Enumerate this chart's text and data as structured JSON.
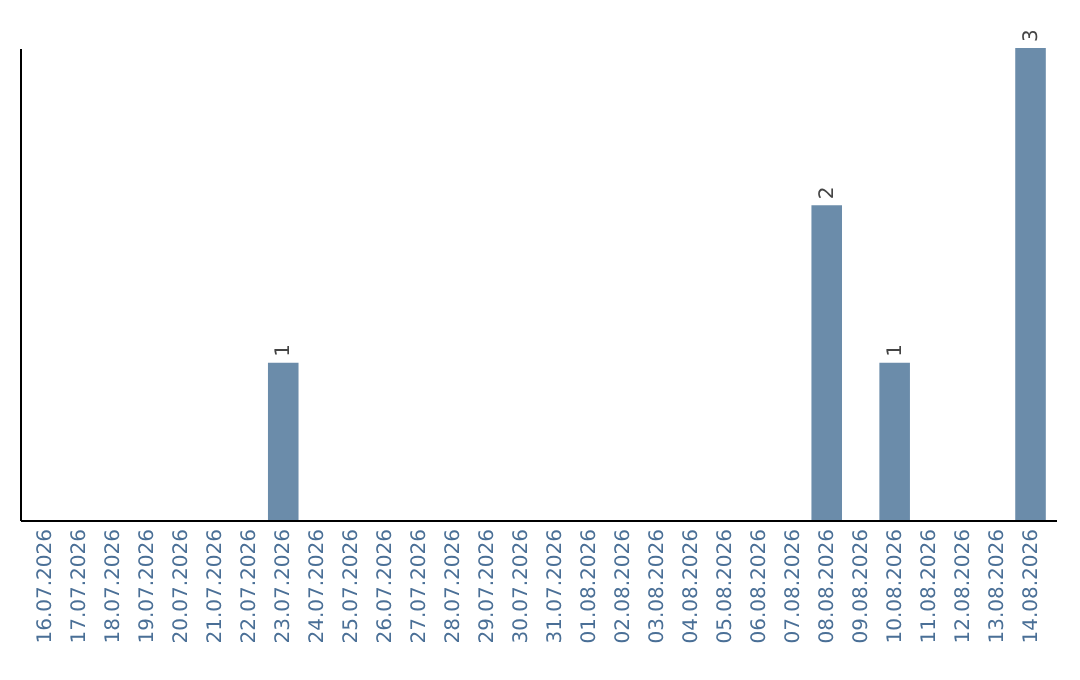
{
  "chart_data": {
    "type": "bar",
    "categories": [
      "16.07.2026",
      "17.07.2026",
      "18.07.2026",
      "19.07.2026",
      "20.07.2026",
      "21.07.2026",
      "22.07.2026",
      "23.07.2026",
      "24.07.2026",
      "25.07.2026",
      "26.07.2026",
      "27.07.2026",
      "28.07.2026",
      "29.07.2026",
      "30.07.2026",
      "31.07.2026",
      "01.08.2026",
      "02.08.2026",
      "03.08.2026",
      "04.08.2026",
      "05.08.2026",
      "06.08.2026",
      "07.08.2026",
      "08.08.2026",
      "09.08.2026",
      "10.08.2026",
      "11.08.2026",
      "12.08.2026",
      "13.08.2026",
      "14.08.2026"
    ],
    "values": [
      0,
      0,
      0,
      0,
      0,
      0,
      0,
      1,
      0,
      0,
      0,
      0,
      0,
      0,
      0,
      0,
      0,
      0,
      0,
      0,
      0,
      0,
      0,
      2,
      0,
      1,
      0,
      0,
      0,
      3
    ],
    "value_labels": [
      null,
      null,
      null,
      null,
      null,
      null,
      null,
      "1",
      null,
      null,
      null,
      null,
      null,
      null,
      null,
      null,
      null,
      null,
      null,
      null,
      null,
      null,
      null,
      "2",
      null,
      "1",
      null,
      null,
      null,
      "3"
    ],
    "color": "#6b8caa"
  }
}
